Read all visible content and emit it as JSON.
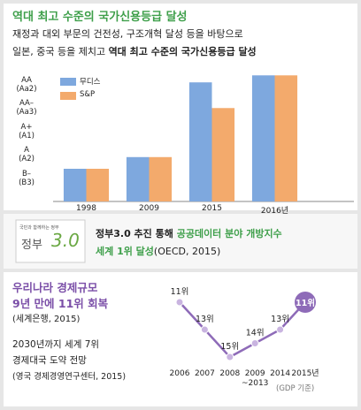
{
  "header": {
    "title": "역대 최고 수준의 국가신용등급 달성",
    "line1": "재정과 대외 부문의 건전성, 구조개혁 달성 등을 바탕으로",
    "line2": [
      "일본, 중국 등을 제치고 ",
      "역대 최고 수준의 국가신용등급 달성"
    ]
  },
  "chart_data": [
    {
      "type": "bar",
      "categories": [
        "1998",
        "2009",
        "2015",
        "2016년"
      ],
      "series": [
        {
          "name": "무디스",
          "color": "#7ea8de",
          "values": [
            1.4,
            1.9,
            5.1,
            5.4
          ]
        },
        {
          "name": "S&P",
          "color": "#f3aa6c",
          "values": [
            1.4,
            1.9,
            4.0,
            5.4
          ]
        }
      ],
      "ylim": [
        0,
        5.6
      ],
      "yticks": [
        {
          "value": 1,
          "label": "B–\n(B3)"
        },
        {
          "value": 2,
          "label": "A\n(A2)"
        },
        {
          "value": 3,
          "label": "A+\n(A1)"
        },
        {
          "value": 4,
          "label": "AA–\n(Aa3)"
        },
        {
          "value": 5,
          "label": "AA\n(Aa2)"
        }
      ],
      "legend": "top-left"
    },
    {
      "type": "line",
      "categories": [
        "2006",
        "2007",
        "2008",
        "2009\n~2013",
        "2014",
        "2015년"
      ],
      "values": [
        11,
        13,
        15,
        14,
        13,
        11
      ],
      "value_labels": [
        "11위",
        "13위",
        "15위",
        "14위",
        "13위",
        "11위"
      ],
      "color": "#8e6bb8",
      "ylim": [
        11,
        15
      ],
      "y_inverted": true,
      "annotation": "(GDP 기준)"
    }
  ],
  "middle": {
    "logo": {
      "caption": "국민과 함께하는 정부",
      "name": "정부",
      "mark": "3.0"
    },
    "line1": [
      "정부3.0 추진 통해 ",
      "공공데이터 분야 개방지수"
    ],
    "line2": [
      "세계 1위 달성",
      "(OECD, 2015)"
    ]
  },
  "bottom": {
    "title1": "우리나라 경제규모",
    "title2": "9년 만에 11위 회복",
    "source1": "(세계은행, 2015)",
    "text1": "2030년까지 세계 7위",
    "text2": "경제대국 도약 전망",
    "source2": "(영국 경제경영연구센터, 2015)"
  }
}
